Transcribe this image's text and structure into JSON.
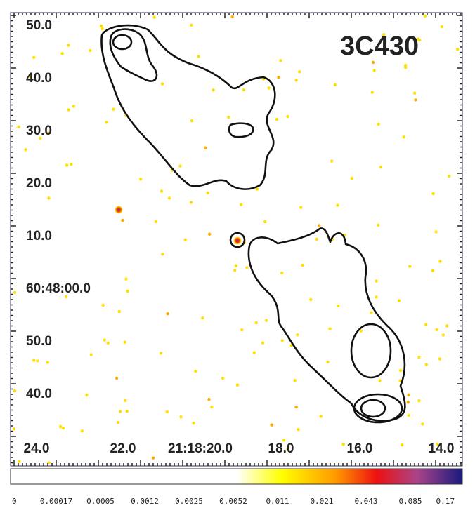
{
  "title": "3C430",
  "y_axis": {
    "labels": [
      "50.0",
      "40.0",
      "30.0",
      "20.0",
      "10.0",
      "60:48:00.0",
      "50.0",
      "40.0"
    ]
  },
  "x_axis": {
    "labels": [
      "24.0",
      "22.0",
      "21:18:20.0",
      "18.0",
      "16.0",
      "14.0"
    ]
  },
  "colorbar": {
    "labels": [
      "0",
      "0.00017",
      "0.0005",
      "0.0012",
      "0.0025",
      "0.0052",
      "0.011",
      "0.021",
      "0.043",
      "0.085",
      "0.17"
    ]
  }
}
